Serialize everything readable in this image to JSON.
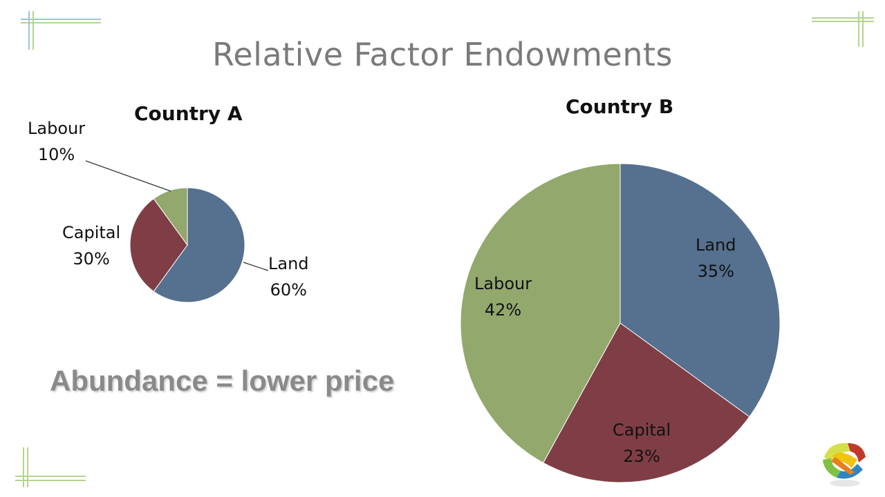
{
  "slide": {
    "title": "Relative Factor Endowments",
    "tagline": "Abundance = lower price"
  },
  "colors": {
    "land": "#56708f",
    "capital": "#7f3e45",
    "labour": "#93a86d",
    "corner_blue": "#9ec3d6",
    "corner_green": "#b5d48a"
  },
  "chart_data": [
    {
      "type": "pie",
      "title": "Country A",
      "slices": [
        {
          "name": "Land",
          "value": 60,
          "label": "60%"
        },
        {
          "name": "Capital",
          "value": 30,
          "label": "30%"
        },
        {
          "name": "Labour",
          "value": 10,
          "label": "10%"
        }
      ]
    },
    {
      "type": "pie",
      "title": "Country B",
      "slices": [
        {
          "name": "Land",
          "value": 35,
          "label": "35%"
        },
        {
          "name": "Capital",
          "value": 23,
          "label": "23%"
        },
        {
          "name": "Labour",
          "value": 42,
          "label": "42%"
        }
      ]
    }
  ]
}
